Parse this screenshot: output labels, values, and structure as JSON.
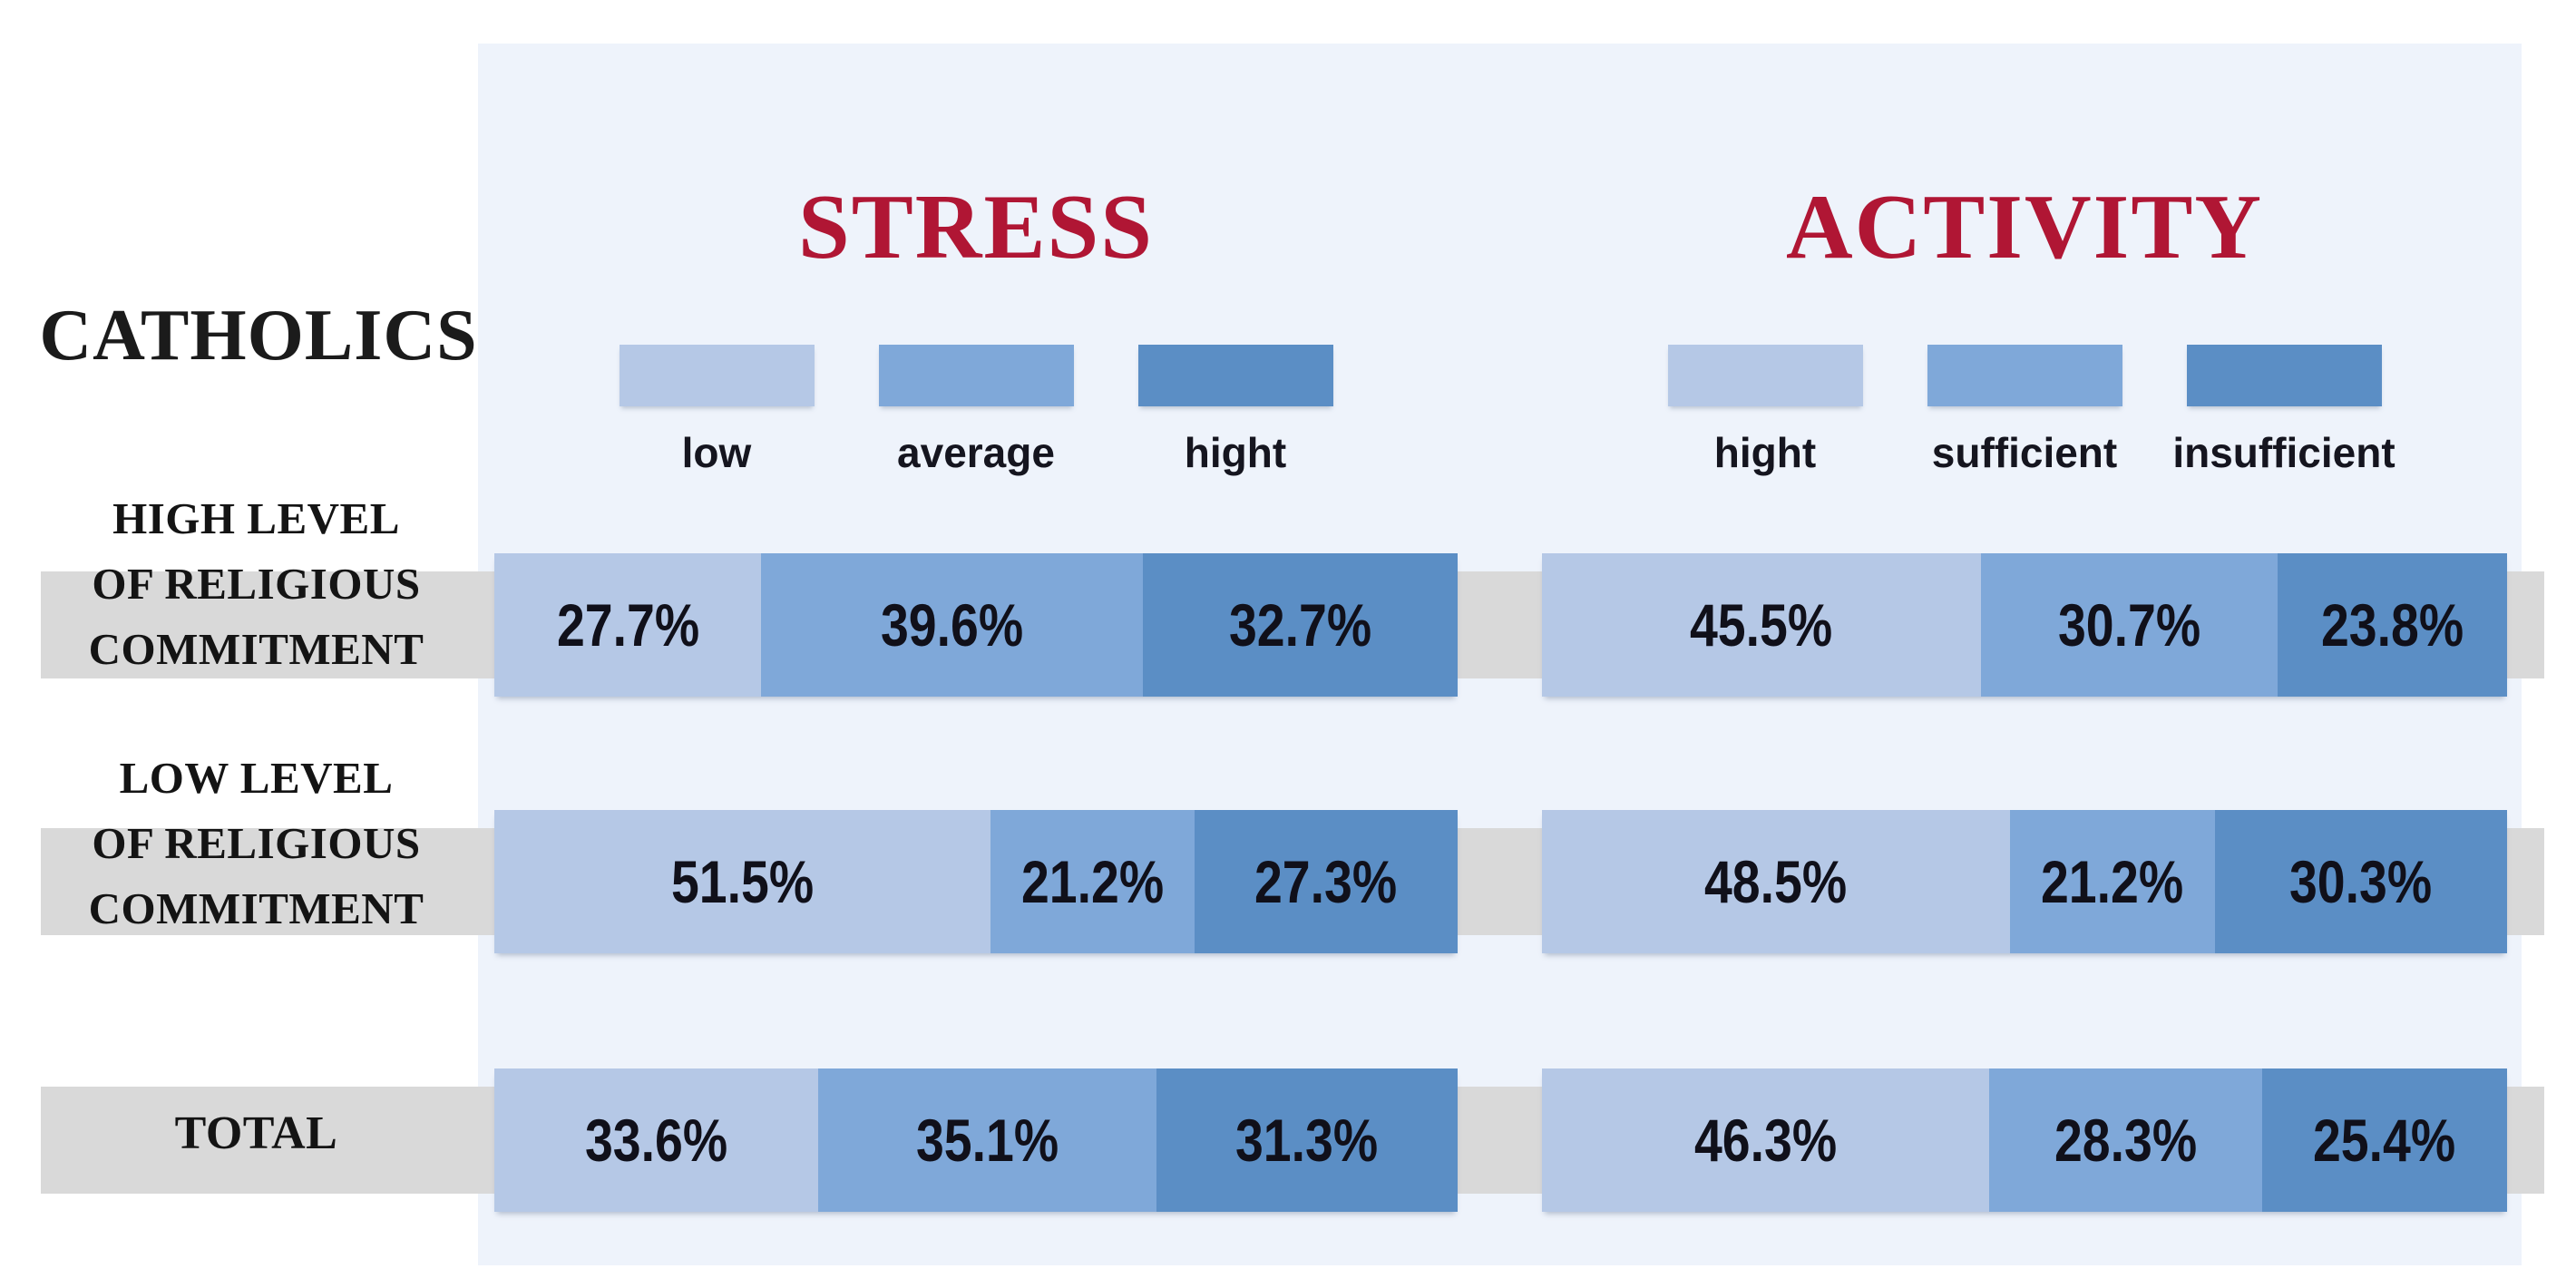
{
  "group_label": "CATHOLICS",
  "panels": {
    "stress": {
      "title": "STRESS",
      "legend": [
        "low",
        "average",
        "hight"
      ]
    },
    "activity": {
      "title": "ACTIVITY",
      "legend": [
        "hight",
        "sufficient",
        "insufficient"
      ]
    }
  },
  "rows": [
    {
      "label_lines": [
        "HIGH LEVEL",
        "OF RELIGIOUS",
        "COMMITMENT"
      ],
      "stress_values": [
        27.7,
        39.6,
        32.7
      ],
      "stress_labels": [
        "27.7%",
        "39.6%",
        "32.7%"
      ],
      "activity_values": [
        45.5,
        30.7,
        23.8
      ],
      "activity_labels": [
        "45.5%",
        "30.7%",
        "23.8%"
      ]
    },
    {
      "label_lines": [
        "LOW LEVEL",
        "OF RELIGIOUS",
        "COMMITMENT"
      ],
      "stress_values": [
        51.5,
        21.2,
        27.3
      ],
      "stress_labels": [
        "51.5%",
        "21.2%",
        "27.3%"
      ],
      "activity_values": [
        48.5,
        21.2,
        30.3
      ],
      "activity_labels": [
        "48.5%",
        "21.2%",
        "30.3%"
      ]
    },
    {
      "label_lines": [
        "TOTAL"
      ],
      "stress_values": [
        33.6,
        35.1,
        31.3
      ],
      "stress_labels": [
        "33.6%",
        "35.1%",
        "31.3%"
      ],
      "activity_values": [
        46.3,
        28.3,
        25.4
      ],
      "activity_labels": [
        "46.3%",
        "28.3%",
        "25.4%"
      ]
    }
  ],
  "colors": {
    "segment_light": "#b5c8e6",
    "segment_medium": "#7fa8d9",
    "segment_dark": "#5b8ec5",
    "panel_background": "#eef3fb",
    "row_band": "#d9d9d9",
    "section_title": "#b01634",
    "value_text": "#10101a"
  },
  "chart_data": {
    "type": "bar",
    "subtype": "horizontal-stacked-100percent",
    "title": "CATHOLICS",
    "categories": [
      "HIGH LEVEL OF RELIGIOUS COMMITMENT",
      "LOW LEVEL OF RELIGIOUS COMMITMENT",
      "TOTAL"
    ],
    "unit": "%",
    "value_labels": true,
    "legend_position": "top",
    "panels": [
      {
        "title": "STRESS",
        "series": [
          {
            "name": "low",
            "color": "#b5c8e6",
            "values": [
              27.7,
              51.5,
              33.6
            ]
          },
          {
            "name": "average",
            "color": "#7fa8d9",
            "values": [
              39.6,
              21.2,
              35.1
            ]
          },
          {
            "name": "hight",
            "color": "#5b8ec5",
            "values": [
              32.7,
              27.3,
              31.3
            ]
          }
        ]
      },
      {
        "title": "ACTIVITY",
        "series": [
          {
            "name": "hight",
            "color": "#b5c8e6",
            "values": [
              45.5,
              48.5,
              46.3
            ]
          },
          {
            "name": "sufficient",
            "color": "#7fa8d9",
            "values": [
              30.7,
              21.2,
              28.3
            ]
          },
          {
            "name": "insufficient",
            "color": "#5b8ec5",
            "values": [
              23.8,
              30.3,
              25.4
            ]
          }
        ]
      }
    ]
  }
}
